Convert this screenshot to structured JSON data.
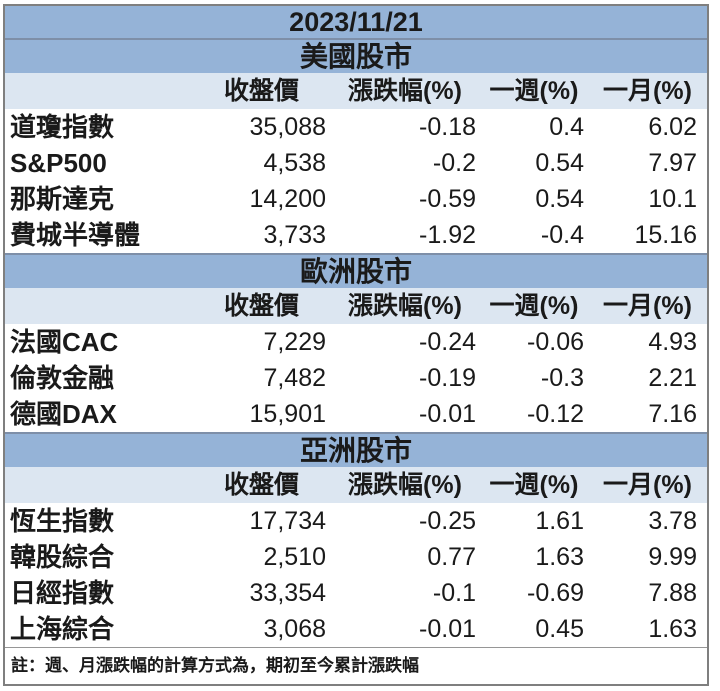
{
  "chart_data": {
    "type": "table",
    "title": "2023/11/21",
    "column_headers": [
      "收盤價",
      "漲跌幅(%)",
      "一週(%)",
      "一月(%)"
    ],
    "sections": [
      {
        "title": "美國股市",
        "rows": [
          {
            "name": "道瓊指數",
            "close": "35,088",
            "change": "-0.18",
            "week": "0.4",
            "month": "6.02"
          },
          {
            "name": "S&P500",
            "close": "4,538",
            "change": "-0.2",
            "week": "0.54",
            "month": "7.97"
          },
          {
            "name": "那斯達克",
            "close": "14,200",
            "change": "-0.59",
            "week": "0.54",
            "month": "10.1"
          },
          {
            "name": "費城半導體",
            "close": "3,733",
            "change": "-1.92",
            "week": "-0.4",
            "month": "15.16"
          }
        ]
      },
      {
        "title": "歐洲股市",
        "rows": [
          {
            "name": "法國CAC",
            "close": "7,229",
            "change": "-0.24",
            "week": "-0.06",
            "month": "4.93"
          },
          {
            "name": "倫敦金融",
            "close": "7,482",
            "change": "-0.19",
            "week": "-0.3",
            "month": "2.21"
          },
          {
            "name": "德國DAX",
            "close": "15,901",
            "change": "-0.01",
            "week": "-0.12",
            "month": "7.16"
          }
        ]
      },
      {
        "title": "亞洲股市",
        "rows": [
          {
            "name": "恆生指數",
            "close": "17,734",
            "change": "-0.25",
            "week": "1.61",
            "month": "3.78"
          },
          {
            "name": "韓股綜合",
            "close": "2,510",
            "change": "0.77",
            "week": "1.63",
            "month": "9.99"
          },
          {
            "name": "日經指數",
            "close": "33,354",
            "change": "-0.1",
            "week": "-0.69",
            "month": "7.88"
          },
          {
            "name": "上海綜合",
            "close": "3,068",
            "change": "-0.01",
            "week": "0.45",
            "month": "1.63"
          }
        ]
      }
    ],
    "footnote": "註：週、月漲跌幅的計算方式為，期初至今累計漲跌幅"
  },
  "colors": {
    "section_band": "#95B3D7",
    "column_header_band": "#DCE6F1",
    "outer_border": "#7F7F7F",
    "divider": "#7E8FA8",
    "text": "#1A1A1A"
  }
}
